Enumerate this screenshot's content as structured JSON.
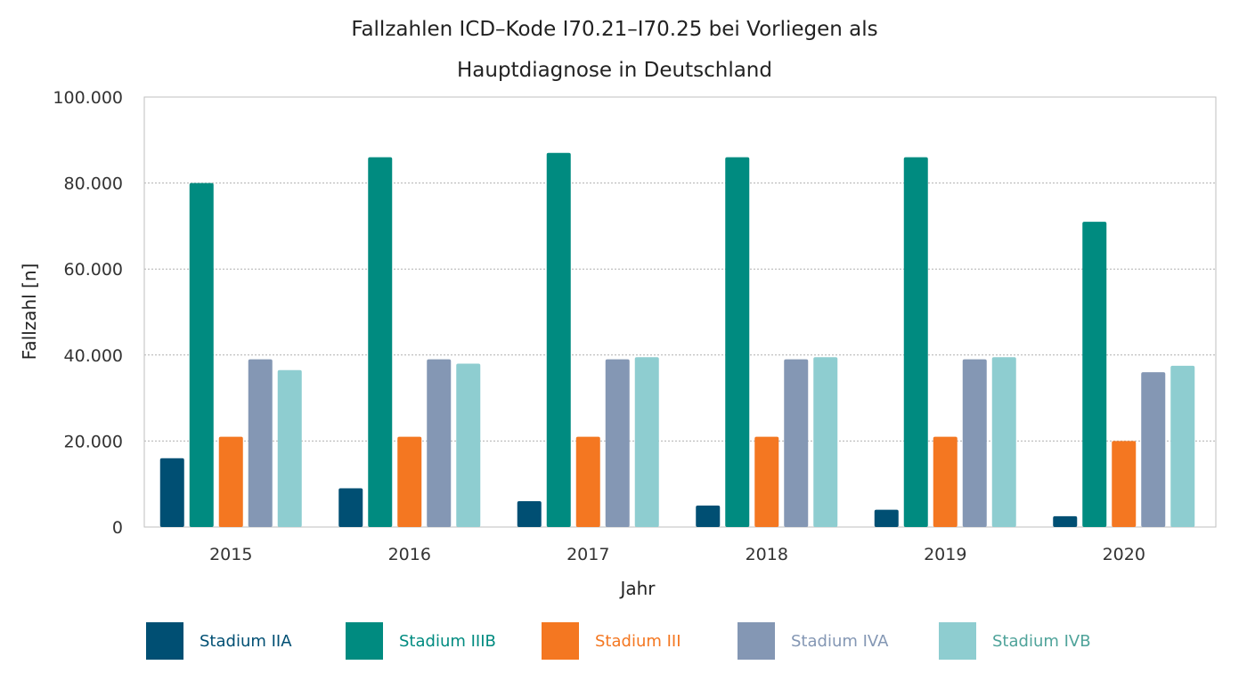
{
  "chart_data": {
    "type": "bar",
    "title_line1": "Fallzahlen ICD–Kode I70.21–I70.25 bei Vorliegen als",
    "title_line2": "Hauptdiagnose in Deutschland",
    "xlabel": "Jahr",
    "ylabel": "Fallzahl [n]",
    "ylim": [
      0,
      100000
    ],
    "yticks": [
      "0",
      "20.000",
      "40.000",
      "60.000",
      "80.000",
      "100.000"
    ],
    "ytick_values": [
      0,
      20000,
      40000,
      60000,
      80000,
      100000
    ],
    "grid": true,
    "legend_position": "bottom",
    "categories": [
      "2015",
      "2016",
      "2017",
      "2018",
      "2019",
      "2020"
    ],
    "series": [
      {
        "name": "Stadium IIA",
        "color": "#004f73",
        "values": [
          16000,
          9000,
          6000,
          5000,
          4000,
          2500
        ]
      },
      {
        "name": "Stadium IIIB",
        "color": "#008b80",
        "values": [
          80000,
          86000,
          87000,
          86000,
          86000,
          71000
        ]
      },
      {
        "name": "Stadium III",
        "color": "#f47721",
        "values": [
          21000,
          21000,
          21000,
          21000,
          21000,
          20000
        ]
      },
      {
        "name": "Stadium IVA",
        "color": "#8497b4",
        "values": [
          39000,
          39000,
          39000,
          39000,
          39000,
          36000
        ]
      },
      {
        "name": "Stadium IVB",
        "color": "#8ecdd0",
        "values": [
          36500,
          38000,
          39500,
          39500,
          39500,
          37500
        ]
      }
    ],
    "legend_text_colors": [
      "#004f73",
      "#008b80",
      "#f47721",
      "#8497b4",
      "#4fa39a"
    ]
  }
}
